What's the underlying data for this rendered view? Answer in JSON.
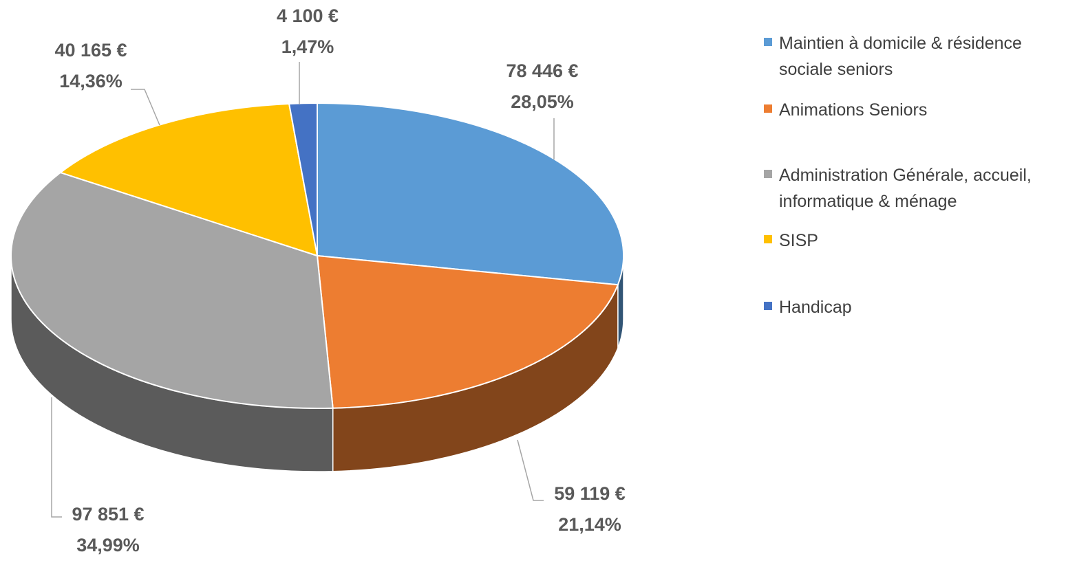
{
  "chart_data": {
    "type": "pie",
    "categories": [
      "Maintien à domicile & résidence sociale seniors",
      "Animations Seniors",
      "Administration Générale, accueil, informatique & ménage",
      "SISP",
      "Handicap"
    ],
    "values": [
      78446,
      59119,
      97851,
      40165,
      4100
    ],
    "value_labels": [
      "78 446 €",
      "59 119 €",
      "97 851 €",
      "40 165 €",
      "4 100 €"
    ],
    "percentages": [
      28.05,
      21.14,
      34.99,
      14.36,
      1.47
    ],
    "percentage_labels": [
      "28,05%",
      "21,14%",
      "34,99%",
      "14,36%",
      "1,47%"
    ],
    "colors": [
      "#5b9bd5",
      "#ed7d31",
      "#a5a5a5",
      "#ffc000",
      "#4472c4"
    ],
    "legend": "right"
  }
}
